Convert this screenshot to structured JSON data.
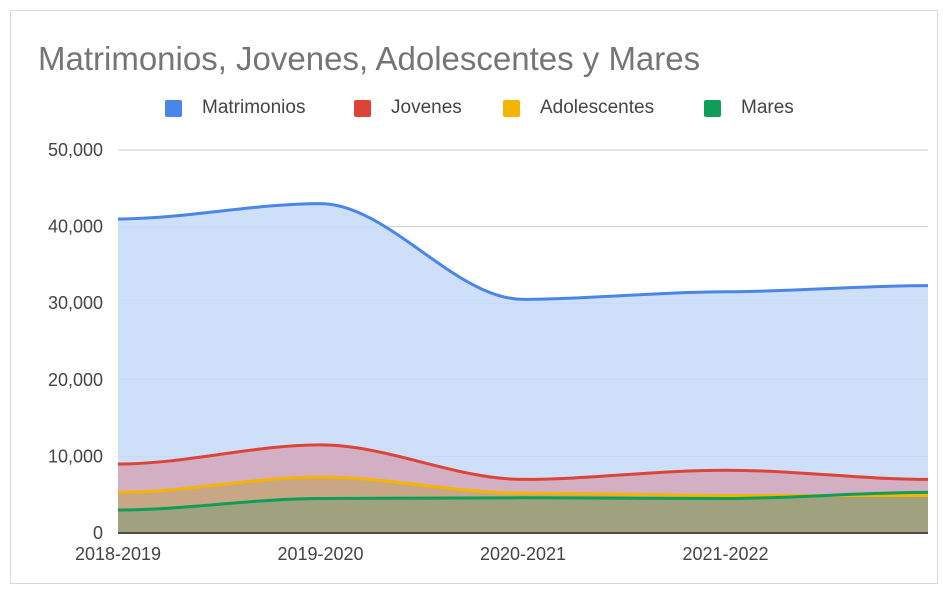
{
  "chart_data": {
    "type": "area",
    "stacked": false,
    "smooth": true,
    "title": "Matrimonios, Jovenes, Adolescentes y Mares",
    "xlabel": "",
    "ylabel": "",
    "categories": [
      "2018-2019",
      "2019-2020",
      "2020-2021",
      "2021-2022",
      ""
    ],
    "x_tick_labels": [
      "2018-2019",
      "2019-2020",
      "2020-2021",
      "2021-2022"
    ],
    "ylim": [
      0,
      50000
    ],
    "y_ticks": [
      0,
      10000,
      20000,
      30000,
      40000,
      50000
    ],
    "y_tick_labels": [
      "0",
      "10,000",
      "20,000",
      "30,000",
      "40,000",
      "50,000"
    ],
    "grid": true,
    "legend_position": "top",
    "series": [
      {
        "name": "Matrimonios",
        "color": "#4a86e8",
        "fill": "#c6d9f8",
        "values": [
          41000,
          43000,
          30500,
          31500,
          32300
        ]
      },
      {
        "name": "Jovenes",
        "color": "#db4437",
        "fill": "#d4a7bb",
        "values": [
          9000,
          11500,
          7000,
          8200,
          7000
        ]
      },
      {
        "name": "Adolescentes",
        "color": "#f4b400",
        "fill": "#c4a67a",
        "values": [
          5300,
          7300,
          5200,
          4900,
          4900
        ]
      },
      {
        "name": "Mares",
        "color": "#0f9d58",
        "fill": "#98a07e",
        "values": [
          3000,
          4500,
          4600,
          4500,
          5300
        ]
      }
    ]
  }
}
